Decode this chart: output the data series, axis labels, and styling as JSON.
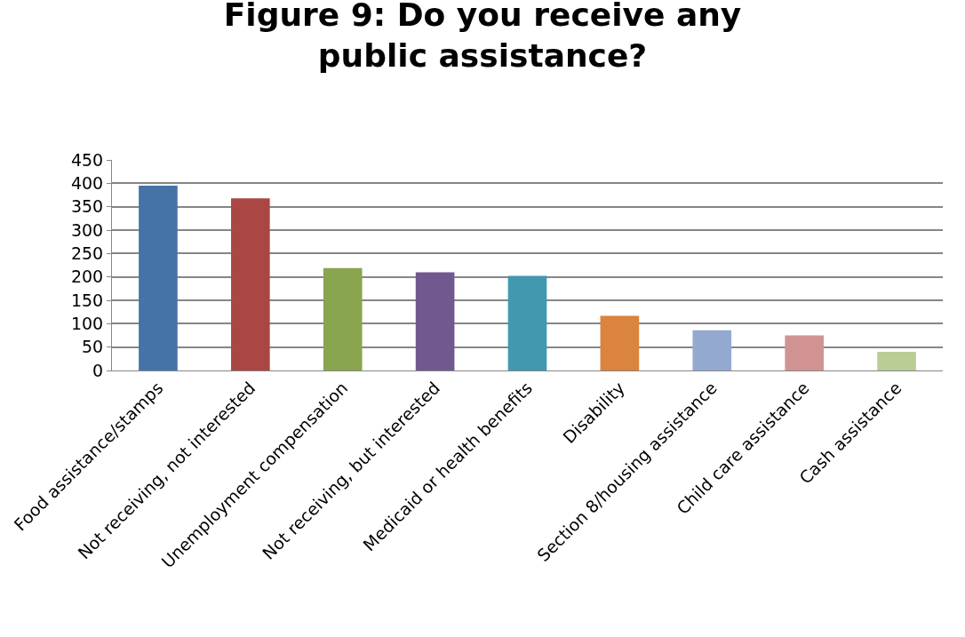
{
  "chart_data": {
    "type": "bar",
    "title": "Figure 9: Do you receive any public assistance?",
    "categories": [
      "Food assistance/stamps",
      "Not receiving, not interested",
      "Unemployment compensation",
      "Not receiving, but interested",
      "Medicaid or health benefits",
      "Disability",
      "Section 8/housing assistance",
      "Child care assistance",
      "Cash assistance"
    ],
    "values": [
      395,
      368,
      219,
      210,
      202,
      117,
      86,
      75,
      40
    ],
    "colors": [
      "#4572a7",
      "#aa4643",
      "#89a54e",
      "#71588f",
      "#4198af",
      "#db843d",
      "#93a9cf",
      "#d19392",
      "#b9cd96"
    ],
    "ylim": [
      0,
      450
    ],
    "yticks": [
      0,
      50,
      100,
      150,
      200,
      250,
      300,
      350,
      400,
      450
    ],
    "grid": "y",
    "legend": false
  }
}
